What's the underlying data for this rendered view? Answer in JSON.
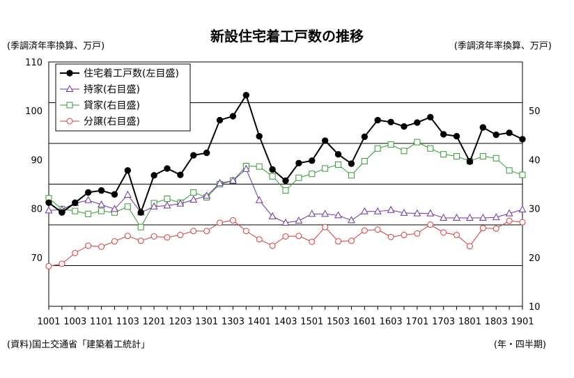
{
  "chart_data": {
    "type": "line",
    "title": "新設住宅着工戸数の推移",
    "left_axis_label": "(季調済年率換算、万戸)",
    "right_axis_label": "(季調済年率換算、万戸)",
    "source": "(資料)国土交通省「建築着工統計」",
    "x_axis_unit": "(年・四半期)",
    "left_ylim": [
      60,
      110
    ],
    "left_ticks": [
      "110",
      "100",
      "90",
      "80",
      "70"
    ],
    "right_ylim": [
      10,
      60
    ],
    "right_ticks": [
      "50",
      "40",
      "30",
      "20",
      "10"
    ],
    "grid": true,
    "legend_position": "top-left",
    "categories": [
      "1001",
      "1002",
      "1003",
      "1004",
      "1101",
      "1102",
      "1103",
      "1104",
      "1201",
      "1202",
      "1203",
      "1204",
      "1301",
      "1302",
      "1303",
      "1304",
      "1401",
      "1402",
      "1403",
      "1404",
      "1501",
      "1502",
      "1503",
      "1504",
      "1601",
      "1602",
      "1603",
      "1604",
      "1701",
      "1702",
      "1703",
      "1704",
      "1801",
      "1802",
      "1803",
      "1804",
      "1901"
    ],
    "tick_labels": [
      "1001",
      "1003",
      "1101",
      "1103",
      "1201",
      "1203",
      "1301",
      "1303",
      "1401",
      "1403",
      "1501",
      "1503",
      "1601",
      "1603",
      "1701",
      "1703",
      "1801",
      "1803",
      "1901"
    ],
    "series": [
      {
        "name": "住宅着工戸数(左目盛)",
        "axis": "left",
        "color": "#000000",
        "marker": "filled-circle",
        "values": [
          81.2,
          79.2,
          81.2,
          83.3,
          83.7,
          82.9,
          87.8,
          79.2,
          86.8,
          88.2,
          86.9,
          90.9,
          91.4,
          98.1,
          98.9,
          103.2,
          94.8,
          88.0,
          85.7,
          89.3,
          89.8,
          93.9,
          91.1,
          89.2,
          94.7,
          98.1,
          97.7,
          96.8,
          97.6,
          98.7,
          95.2,
          94.8,
          89.6,
          96.6,
          95.1,
          95.5,
          94.2
        ]
      },
      {
        "name": "持家(右目盛)",
        "axis": "right",
        "color": "#7030a0",
        "marker": "open-triangle",
        "values": [
          29.6,
          29.8,
          31.1,
          31.7,
          30.8,
          29.9,
          32.8,
          29.2,
          30.4,
          30.6,
          31.0,
          31.8,
          32.6,
          35.2,
          35.7,
          38.1,
          31.7,
          28.4,
          27.1,
          27.5,
          28.9,
          28.9,
          28.6,
          27.6,
          29.4,
          29.4,
          29.7,
          29.1,
          29.0,
          29.0,
          28.1,
          28.1,
          28.1,
          28.1,
          28.2,
          29.0,
          29.8
        ]
      },
      {
        "name": "貸家(右目盛)",
        "axis": "right",
        "color": "#339933",
        "marker": "open-square",
        "values": [
          32.1,
          29.9,
          29.5,
          28.9,
          29.5,
          29.2,
          30.4,
          26.2,
          31.1,
          32.0,
          31.2,
          33.3,
          32.3,
          35.0,
          35.7,
          38.7,
          38.6,
          36.6,
          33.7,
          36.3,
          37.1,
          38.2,
          39.0,
          36.8,
          39.7,
          42.3,
          43.1,
          41.8,
          43.6,
          42.3,
          41.1,
          40.7,
          39.7,
          40.7,
          40.3,
          37.8,
          36.9
        ]
      },
      {
        "name": "分譲(右目盛)",
        "axis": "right",
        "color": "#d83a3a",
        "marker": "open-circle",
        "values": [
          18.2,
          18.7,
          20.9,
          22.4,
          22.2,
          23.3,
          24.4,
          23.4,
          24.3,
          24.1,
          24.6,
          25.4,
          25.4,
          27.1,
          27.6,
          25.4,
          23.7,
          22.4,
          24.3,
          24.4,
          23.2,
          26.2,
          23.3,
          23.4,
          25.5,
          25.7,
          24.2,
          24.6,
          24.9,
          26.7,
          25.1,
          24.6,
          22.3,
          26.0,
          25.9,
          27.5,
          27.2
        ]
      }
    ]
  }
}
